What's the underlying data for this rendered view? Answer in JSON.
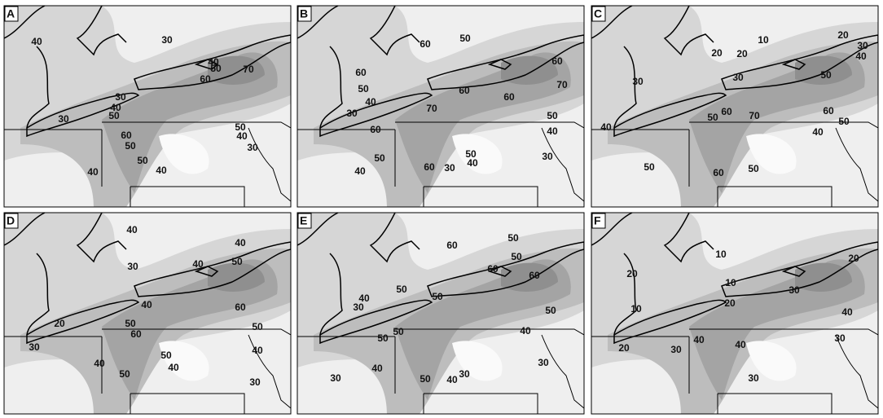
{
  "panels": [
    {
      "letter": "A",
      "contour_labels": [
        40,
        30,
        40,
        50,
        60,
        70,
        30,
        40,
        50,
        30,
        60,
        50,
        50,
        40,
        30,
        50,
        40,
        40
      ]
    },
    {
      "letter": "B",
      "contour_labels": [
        60,
        50,
        60,
        50,
        40,
        60,
        70,
        60,
        60,
        30,
        70,
        50,
        40,
        60,
        50,
        40,
        50,
        40,
        30,
        60,
        30
      ]
    },
    {
      "letter": "C",
      "contour_labels": [
        10,
        20,
        20,
        20,
        40,
        30,
        30,
        30,
        50,
        50,
        60,
        70,
        60,
        50,
        40,
        40,
        50,
        60,
        50
      ]
    },
    {
      "letter": "D",
      "contour_labels": [
        40,
        40,
        30,
        40,
        50,
        40,
        60,
        20,
        50,
        60,
        50,
        30,
        50,
        40,
        40,
        40,
        50,
        30
      ]
    },
    {
      "letter": "E",
      "contour_labels": [
        60,
        50,
        50,
        60,
        60,
        50,
        40,
        30,
        50,
        50,
        50,
        50,
        40,
        40,
        30,
        50,
        40,
        30,
        30
      ]
    },
    {
      "letter": "F",
      "contour_labels": [
        10,
        20,
        20,
        10,
        20,
        30,
        40,
        10,
        30,
        40,
        40,
        20,
        30,
        30
      ]
    }
  ]
}
